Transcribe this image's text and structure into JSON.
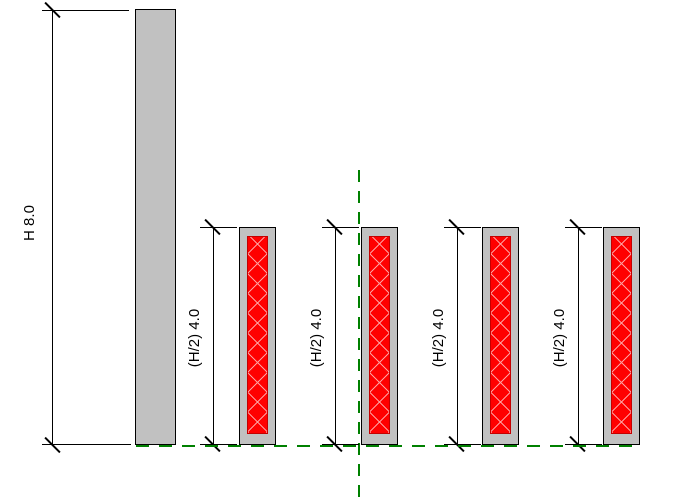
{
  "drawing": {
    "background_color": "#ffffff",
    "line_color": "#000000",
    "reference_plane_color": "#008000",
    "tall_column": {
      "fill_color": "#c1c1c1",
      "height_value": "8.0"
    },
    "height_dimension": {
      "label": "H 8.0"
    },
    "half_dimensions": [
      {
        "label": "(H/2) 4.0"
      },
      {
        "label": "(H/2) 4.0"
      },
      {
        "label": "(H/2) 4.0"
      },
      {
        "label": "(H/2) 4.0"
      }
    ],
    "short_columns": {
      "count": 4,
      "height_value": "4.0",
      "casing_color": "#c1c1c1",
      "core_color": "#ff0000",
      "hatch_color": "#ff9e9e",
      "hatch_pattern": "diagonal-crosshatch"
    }
  }
}
